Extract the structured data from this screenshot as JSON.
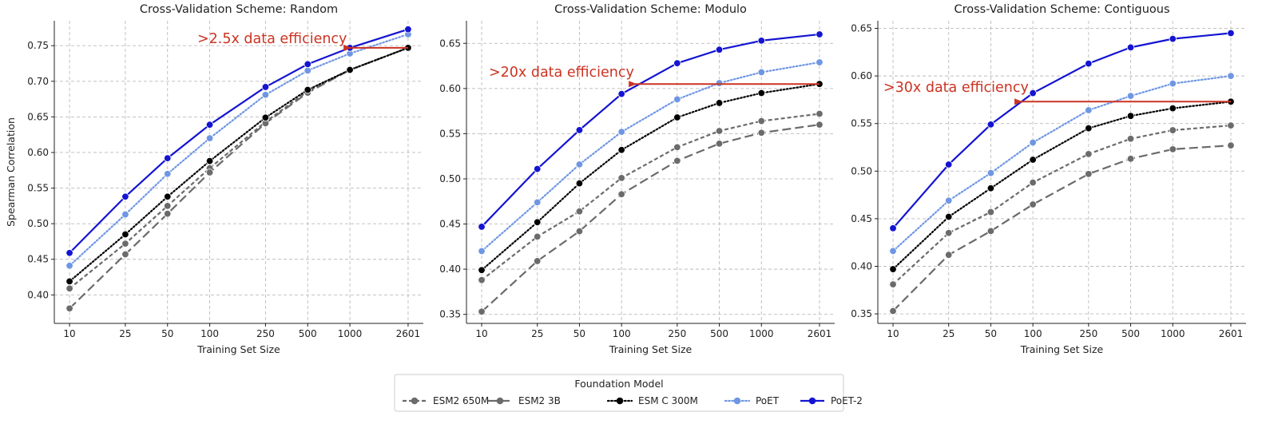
{
  "chart_data": [
    {
      "type": "line",
      "title": "Cross-Validation Scheme: Random",
      "xlabel": "Training Set Size",
      "ylabel": "Spearman Correlation",
      "x_scale": "log",
      "x": [
        10,
        25,
        50,
        100,
        250,
        500,
        1000,
        2601
      ],
      "x_tick_labels": [
        "10",
        "25",
        "50",
        "100",
        "250",
        "500",
        "1000",
        "2601"
      ],
      "ylim": [
        0.36,
        0.785
      ],
      "y_ticks": [
        0.4,
        0.45,
        0.5,
        0.55,
        0.6,
        0.65,
        0.7,
        0.75
      ],
      "y_tick_labels": [
        "0.40",
        "0.45",
        "0.50",
        "0.55",
        "0.60",
        "0.65",
        "0.70",
        "0.75"
      ],
      "grid": true,
      "series": [
        {
          "name": "ESM2 650M",
          "values": [
            0.409,
            0.472,
            0.525,
            0.578,
            0.643,
            0.686,
            0.716,
            0.747
          ]
        },
        {
          "name": "ESM2 3B",
          "values": [
            0.381,
            0.457,
            0.514,
            0.572,
            0.641,
            0.684,
            0.716,
            0.747
          ]
        },
        {
          "name": "ESM C 300M",
          "values": [
            0.419,
            0.485,
            0.538,
            0.588,
            0.649,
            0.688,
            0.716,
            0.747
          ]
        },
        {
          "name": "PoET",
          "values": [
            0.441,
            0.513,
            0.57,
            0.62,
            0.681,
            0.715,
            0.739,
            0.766
          ]
        },
        {
          "name": "PoET-2",
          "values": [
            0.459,
            0.538,
            0.592,
            0.639,
            0.692,
            0.724,
            0.747,
            0.773
          ]
        }
      ],
      "annotation": {
        "text": ">2.5x data efficiency",
        "arrow_from_x": 2601,
        "arrow_to_x": 1000,
        "arrow_y": 0.747
      }
    },
    {
      "type": "line",
      "title": "Cross-Validation Scheme: Modulo",
      "xlabel": "Training Set Size",
      "ylabel": "",
      "x_scale": "log",
      "x": [
        10,
        25,
        50,
        100,
        250,
        500,
        1000,
        2601
      ],
      "x_tick_labels": [
        "10",
        "25",
        "50",
        "100",
        "250",
        "500",
        "1000",
        "2601"
      ],
      "ylim": [
        0.34,
        0.675
      ],
      "y_ticks": [
        0.35,
        0.4,
        0.45,
        0.5,
        0.55,
        0.6,
        0.65
      ],
      "y_tick_labels": [
        "0.35",
        "0.40",
        "0.45",
        "0.50",
        "0.55",
        "0.60",
        "0.65"
      ],
      "grid": true,
      "series": [
        {
          "name": "ESM2 650M",
          "values": [
            0.388,
            0.436,
            0.464,
            0.501,
            0.535,
            0.553,
            0.564,
            0.572
          ]
        },
        {
          "name": "ESM2 3B",
          "values": [
            0.353,
            0.409,
            0.442,
            0.483,
            0.52,
            0.539,
            0.551,
            0.56
          ]
        },
        {
          "name": "ESM C 300M",
          "values": [
            0.399,
            0.452,
            0.495,
            0.532,
            0.568,
            0.584,
            0.595,
            0.605
          ]
        },
        {
          "name": "PoET",
          "values": [
            0.42,
            0.474,
            0.516,
            0.552,
            0.588,
            0.606,
            0.618,
            0.629
          ]
        },
        {
          "name": "PoET-2",
          "values": [
            0.447,
            0.511,
            0.554,
            0.594,
            0.628,
            0.643,
            0.653,
            0.66
          ]
        }
      ],
      "annotation": {
        "text": ">20x data efficiency",
        "arrow_from_x": 2601,
        "arrow_to_x": 125,
        "arrow_y": 0.605
      }
    },
    {
      "type": "line",
      "title": "Cross-Validation Scheme: Contiguous",
      "xlabel": "Training Set Size",
      "ylabel": "",
      "x_scale": "log",
      "x": [
        10,
        25,
        50,
        100,
        250,
        500,
        1000,
        2601
      ],
      "x_tick_labels": [
        "10",
        "25",
        "50",
        "100",
        "250",
        "500",
        "1000",
        "2601"
      ],
      "ylim": [
        0.34,
        0.658
      ],
      "y_ticks": [
        0.35,
        0.4,
        0.45,
        0.5,
        0.55,
        0.6,
        0.65
      ],
      "y_tick_labels": [
        "0.35",
        "0.40",
        "0.45",
        "0.50",
        "0.55",
        "0.60",
        "0.65"
      ],
      "grid": true,
      "series": [
        {
          "name": "ESM2 650M",
          "values": [
            0.381,
            0.435,
            0.457,
            0.488,
            0.518,
            0.534,
            0.543,
            0.548
          ]
        },
        {
          "name": "ESM2 3B",
          "values": [
            0.353,
            0.412,
            0.437,
            0.465,
            0.497,
            0.513,
            0.523,
            0.527
          ]
        },
        {
          "name": "ESM C 300M",
          "values": [
            0.397,
            0.452,
            0.482,
            0.512,
            0.545,
            0.558,
            0.566,
            0.573
          ]
        },
        {
          "name": "PoET",
          "values": [
            0.416,
            0.469,
            0.498,
            0.53,
            0.564,
            0.579,
            0.592,
            0.6
          ]
        },
        {
          "name": "PoET-2",
          "values": [
            0.44,
            0.507,
            0.549,
            0.582,
            0.613,
            0.63,
            0.639,
            0.645
          ]
        }
      ],
      "annotation": {
        "text": ">30x data efficiency",
        "arrow_from_x": 2601,
        "arrow_to_x": 82,
        "arrow_y": 0.573
      }
    }
  ],
  "legend": {
    "title": "Foundation Model",
    "placement": "bottom-center",
    "items": [
      "ESM2 650M",
      "ESM2 3B",
      "ESM C 300M",
      "PoET",
      "PoET-2"
    ]
  },
  "styles": {
    "series": {
      "ESM2 650M": {
        "color": "#6b6b6b",
        "dash": "short-dash"
      },
      "ESM2 3B": {
        "color": "#6b6b6b",
        "dash": "long-dash"
      },
      "ESM C 300M": {
        "color": "#000000",
        "dash": "dotted"
      },
      "PoET": {
        "color": "#6f96e3",
        "dash": "dotted"
      },
      "PoET-2": {
        "color": "#1414d2",
        "dash": "solid"
      }
    },
    "annotation_color": "#cc3322",
    "grid_color": "#bbbbbb"
  }
}
